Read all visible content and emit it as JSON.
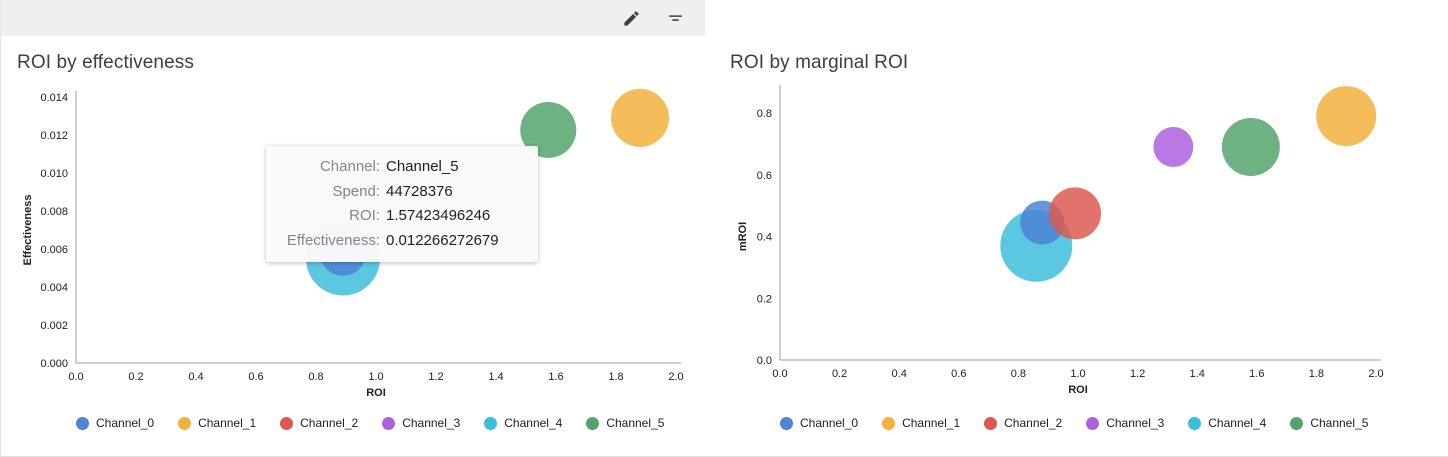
{
  "toolbar": {
    "background": "#efefef",
    "icons": [
      {
        "name": "edit-pencil-icon"
      },
      {
        "name": "filter-icon"
      }
    ]
  },
  "palette": {
    "Channel_0": "#4D84D4",
    "Channel_1": "#F2B23C",
    "Channel_2": "#DC5A50",
    "Channel_3": "#AB62DF",
    "Channel_4": "#3EBDDB",
    "Channel_5": "#55A36C"
  },
  "legend": [
    "Channel_0",
    "Channel_1",
    "Channel_2",
    "Channel_3",
    "Channel_4",
    "Channel_5"
  ],
  "tooltip": {
    "rows": [
      {
        "label": "Channel:",
        "value": "Channel_5"
      },
      {
        "label": "Spend:",
        "value": "44728376"
      },
      {
        "label": "ROI:",
        "value": "1.57423496246"
      },
      {
        "label": "Effectiveness:",
        "value": "0.012266272679"
      }
    ]
  },
  "chart_data": [
    {
      "type": "scatter",
      "title": "ROI by effectiveness",
      "xlabel": "ROI",
      "ylabel": "Effectiveness",
      "xlim": [
        0.0,
        2.0
      ],
      "ylim": [
        0.0,
        0.014
      ],
      "grid": false,
      "legend_position": "bottom",
      "xticks": [
        0.0,
        0.2,
        0.4,
        0.6,
        0.8,
        1.0,
        1.2,
        1.4,
        1.6,
        1.8,
        2.0
      ],
      "xtick_labels": [
        "0.0",
        "0.2",
        "0.4",
        "0.6",
        "0.8",
        "1.0",
        "1.2",
        "1.4",
        "1.6",
        "1.8",
        "2.0"
      ],
      "yticks": [
        0.0,
        0.002,
        0.004,
        0.006,
        0.008,
        0.01,
        0.012,
        0.014
      ],
      "ytick_labels": [
        "0.000",
        "0.002",
        "0.004",
        "0.006",
        "0.008",
        "0.010",
        "0.012",
        "0.014"
      ],
      "points": [
        {
          "channel": "Channel_4",
          "x": 0.89,
          "y": 0.0055,
          "r": 37
        },
        {
          "channel": "Channel_0",
          "x": 0.89,
          "y": 0.0058,
          "r": 23
        },
        {
          "channel": "Channel_5",
          "x": 1.57423496246,
          "y": 0.012266272679,
          "r": 28
        },
        {
          "channel": "Channel_1",
          "x": 1.88,
          "y": 0.0129,
          "r": 29
        }
      ]
    },
    {
      "type": "scatter",
      "title": "ROI by marginal ROI",
      "xlabel": "ROI",
      "ylabel": "mROI",
      "xlim": [
        0.0,
        2.0
      ],
      "ylim": [
        0.0,
        0.8
      ],
      "grid": false,
      "legend_position": "bottom",
      "xticks": [
        0.0,
        0.2,
        0.4,
        0.6,
        0.8,
        1.0,
        1.2,
        1.4,
        1.6,
        1.8,
        2.0
      ],
      "xtick_labels": [
        "0.0",
        "0.2",
        "0.4",
        "0.6",
        "0.8",
        "1.0",
        "1.2",
        "1.4",
        "1.6",
        "1.8",
        "2.0"
      ],
      "yticks": [
        0.0,
        0.2,
        0.4,
        0.6,
        0.8
      ],
      "ytick_labels": [
        "0.0",
        "0.2",
        "0.4",
        "0.6",
        "0.8"
      ],
      "points": [
        {
          "channel": "Channel_4",
          "x": 0.86,
          "y": 0.37,
          "r": 36
        },
        {
          "channel": "Channel_0",
          "x": 0.88,
          "y": 0.445,
          "r": 22
        },
        {
          "channel": "Channel_2",
          "x": 0.99,
          "y": 0.475,
          "r": 26
        },
        {
          "channel": "Channel_3",
          "x": 1.32,
          "y": 0.69,
          "r": 20
        },
        {
          "channel": "Channel_5",
          "x": 1.58,
          "y": 0.69,
          "r": 29
        },
        {
          "channel": "Channel_1",
          "x": 1.9,
          "y": 0.79,
          "r": 30
        }
      ]
    }
  ]
}
